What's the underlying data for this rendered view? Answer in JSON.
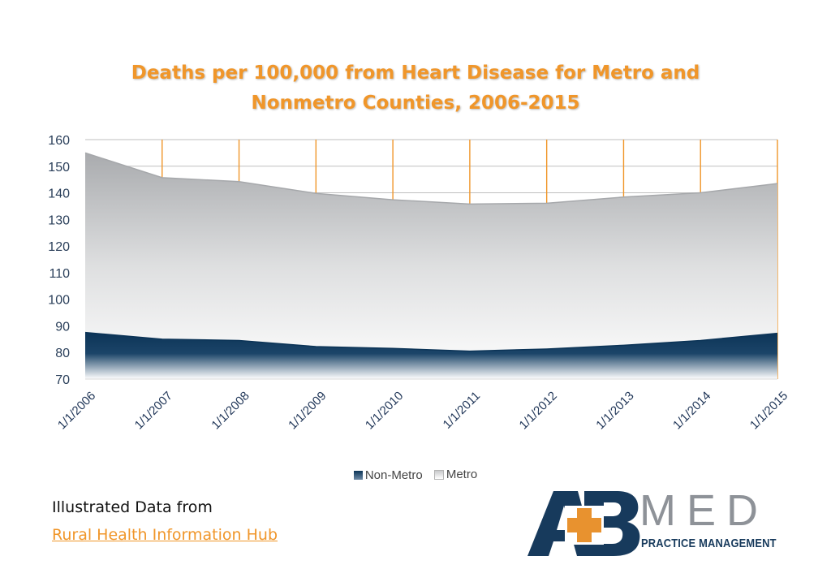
{
  "chart_data": {
    "type": "area",
    "title_lines": [
      "Deaths per 100,000 from Heart Disease for Metro and",
      "Nonmetro Counties, 2006-2015"
    ],
    "categories": [
      "1/1/2006",
      "1/1/2007",
      "1/1/2008",
      "1/1/2009",
      "1/1/2010",
      "1/1/2011",
      "1/1/2012",
      "1/1/2013",
      "1/1/2014",
      "1/1/2015"
    ],
    "series": [
      {
        "name": "Non-Metro",
        "values": [
          87.5,
          85,
          84.5,
          82.2,
          81.5,
          80.5,
          81.3,
          82.7,
          84.5,
          87.2
        ],
        "color": "#0c3457"
      },
      {
        "name": "Metro",
        "values": [
          155,
          145.7,
          144.2,
          139.8,
          137.4,
          135.8,
          136.1,
          138.4,
          140,
          143.5
        ],
        "color": "#c8c9cb"
      }
    ],
    "ylim": [
      70,
      160
    ],
    "yticks": [
      70,
      80,
      90,
      100,
      110,
      120,
      130,
      140,
      150,
      160
    ],
    "grid": true,
    "legend_position": "bottom",
    "accent_color": "#f0962a"
  },
  "source": {
    "line1": "Illustrated Data from",
    "link_text": "Rural Health Information Hub"
  },
  "logo": {
    "mark": "A+B",
    "word": "MED",
    "tagline": "PRACTICE MANAGEMENT"
  }
}
